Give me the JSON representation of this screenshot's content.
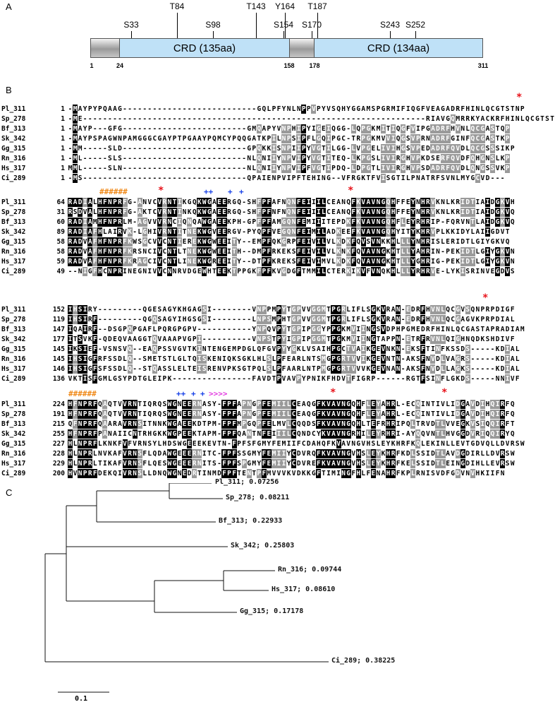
{
  "panels": {
    "a": "A",
    "b": "B",
    "c": "C"
  },
  "domain_diagram": {
    "crd1_label": "CRD (135aa)",
    "crd2_label": "CRD (134aa)",
    "coords": [
      "1",
      "24",
      "158",
      "178",
      "311"
    ],
    "sites": [
      "S33",
      "T84",
      "S98",
      "T143",
      "S154",
      "Y164",
      "S170",
      "T187",
      "S243",
      "S252"
    ]
  },
  "alignment": {
    "block1": {
      "rows": [
        {
          "name": "Pl_311",
          "pos": "1",
          "seq": "-MAYPYPQAAG---------------------------GQLPFYNLNPPVPYVSQHYGGAMSPGRMIFIQGFVEAGADRFHINLQCGTSTNP"
        },
        {
          "name": "Sp_278",
          "pos": "1",
          "seq": "-ME---------------------------------------------------------------------RIAVGQMRRKYACKRFHINLQCGTSTNP"
        },
        {
          "name": "Bf_313",
          "pos": "1",
          "seq": "-MAYP---GFG-------------------------GMQAPYVNPHIPYIGEIQGG-LQPGKMITIQGFVIPGADRFHVNLQCGASTQP"
        },
        {
          "name": "Sk_342",
          "pos": "1",
          "seq": "-MAYPSPAGWNPAMGGGCGAYPTPGAAYPQMCYPQQGATKPILNPSIPFLGQIPGC-TRPGKMVVIQGSVPRNADRFGINFQCGASTKP"
        },
        {
          "name": "Gg_315",
          "pos": "1",
          "seq": "-MM-----SLD-------------------------GPQKKISNPIIPYVGTILGG-LVPGELIVIHGSVPEDADRFQVDLQCGSSSIKP"
        },
        {
          "name": "Rn_316",
          "pos": "1",
          "seq": "-ML-----SLS-------------------------NLQNIIYNPVIPYVGTITEQ-LKPGSLIVIRGHVPKDSERFQVDFQHGNSLKP"
        },
        {
          "name": "Hs_317",
          "pos": "1",
          "seq": "MML-----SLN-------------------------NLQNIIYNPVIPFVGTIPDQ-LDPGTLIVIRGHVPSDADRFQVDLQNGSSVKP"
        },
        {
          "name": "Ci_289",
          "pos": "1",
          "seq": "-MS---------------------------------QPAIENPVIPFTEHING--VFRGKTFVISGTILPNATRFSVNLMYGCVD---"
        }
      ],
      "stars": [
        "*"
      ]
    },
    "block2": {
      "rows": [
        {
          "name": "Pl_311",
          "pos": "64",
          "seq": "RADIALHFNPRFG-ANVCVRNTIKGQKWGAEERGQ-SHFPFAFNQNFEIIILCEANQFKVAVNGQHFFEYNHRVKNLKRIDTIAIDGKVH"
        },
        {
          "name": "Sp_278",
          "pos": "31",
          "seq": "RSDVALHFNPRFG-AKTCVRNTINKQKWGAEERGQ-SHFPFNFNQNFEIIILCEANQFKVAVNGQHFFEYNHRVKNLKRIDTIAIDGKVQ"
        },
        {
          "name": "Bf_313",
          "pos": "60",
          "seq": "RADIAMHFNPRLM-AGVVVRNCIQNQAWGAEEKPH-GPFPFAMGQNFEMIIITEPDKFKVAVNGQHFLEYRHRIP-FQRVNTLAIDGKVQ"
        },
        {
          "name": "Sk_342",
          "pos": "89",
          "seq": "RADIAFHLAIRVK-LGHIVRNTITNEKWGVEERGV-PYQPFVEGQNFEIMILADKEEFKVAVNGQHYITYKHRVPLKKIDYLAIIGDVT"
        },
        {
          "name": "Gg_315",
          "pos": "58",
          "seq": "RADVAFHFNPRFKWSGCVVCNTIEREKWGWEEITY--EMPFQKGRPFEIVILVLKDKFQVSVNKKHLLLYNHRISLERIDTLGIYGKVQ"
        },
        {
          "name": "Rn_316",
          "pos": "58",
          "seq": "RADVAFHFNPRFKRSNCIVCNTLTNEKWGWEEITH--DMPFRKEKSFEIVILVLKNKFQVAVNGKHTLLYAHRIN-PEKIDTLGIYGKVN"
        },
        {
          "name": "Hs_317",
          "pos": "59",
          "seq": "RADVAFHFNPRFKRAGCIVCNTLINEKWGREEITY--DTPFKREKSFEIVIMVLKDKFQVAVNGKHTLLYGHRIG-PEKIDTLGIYGKVN"
        },
        {
          "name": "Ci_289",
          "pos": "49",
          "seq": "--NIGFHCNPRINEGNIVVCNNRVDGEWHTEEKTPPGKFPFKVGDGFTMMILCTERKIKVFVNQKHLLLYRHRVE-LYKISRINVEGDVS"
        }
      ],
      "annotations": [
        "######",
        "*",
        "++",
        "+",
        "+",
        "*"
      ]
    },
    "block3": {
      "rows": [
        {
          "name": "Pl_311",
          "pos": "152",
          "seq": "IHSIRY---------QGESAGYKHGAGSI--------VNPPMPYTGPVVGGMTPGRLIFLSGKVRAN-EDRFHVNLQCGVSQNPRPDIGF"
        },
        {
          "name": "Sp_278",
          "pos": "119",
          "seq": "IHSIRF---------QGQSAGYIHGSGSI--------LNPSMPHTGPVVGGMTPGRLIFLSGKVRAN-EDRFHVNLQCGAGVKPRPDIAL"
        },
        {
          "name": "Bf_313",
          "pos": "147",
          "seq": "IQAIRF--DSGPQPGAFLPQRGPGPV-----------YNPQVPYTGPIPGGYPPGKMVIINGSVDPHPGMEDRFHINLQCGASTAPRADIAM"
        },
        {
          "name": "Sk_342",
          "pos": "177",
          "seq": "ITSVKF-QDEQVAAGGTQVAAAPVGPI----------VNPSTPYIGPIPGGMTPGKMVIINGTAPPN-ETRFRVNLQIGHNQDKSHDIVF"
        },
        {
          "name": "Gg_315",
          "pos": "145",
          "seq": "IKSIEF-VSNSVQ--EAQPSSVGVTKINTENGEMPDGLQFGVPYYGKLVSAIHPGCTVAIKGEVNKN-EKSFTINFKSSDS-----KDIAL"
        },
        {
          "name": "Rn_316",
          "pos": "145",
          "seq": "IHSIGFRFSSDLQ--SMETSTLGLTQISKENIQKSGKLHLSLPFEARLNTSMGPGRTVVIKGEVNTN-AKSFNVDLVAGRS-----KDIAL"
        },
        {
          "name": "Hs_317",
          "pos": "146",
          "seq": "IHSIGFSFSSDLQ--STQASSLELTEISRENVPKSGTPQLSLPFAARLNTPMGPGRTVVVKGEVNAN-AKSFNVDLLAGKS-----KDIAL"
        },
        {
          "name": "Ci_289",
          "pos": "136",
          "seq": "VKTISFGMLGSYPDTGLEIPK----------------FAVDTPVAVPYPNIKFHDVTFIGRP------RGTFSINFLGKDS-----NNIVF"
        }
      ],
      "stars": [
        "*"
      ]
    },
    "block4": {
      "rows": [
        {
          "name": "Pl_311",
          "pos": "224",
          "seq": "HFNPRFQAQTVVRNTIQRQSWGNEERNASY-FPFAPNGPFEMIILCEAQGFKVAVNGQHFLEYAHRL-ECQINTIVLIDGAVDIHQIRFQ"
        },
        {
          "name": "Sp_278",
          "pos": "191",
          "seq": "HFNPRFQAQTVVRNTIQRQSWGNEERNASY-FPFAPNGPFEMIILCEAQGFKVAVNGQHFLEYAHRL-ECQINTIVLIDGAVDIHQIRFQ"
        },
        {
          "name": "Bf_313",
          "pos": "215",
          "seq": "QFNPRFQAARAVRNSITNNKWGAEEKDTPM-FPFMPGQPFELMVLCQQDSFKVAVNGQHLTEFRHRIPQLTRVDTLVVEGKVSIQQIRFT"
        },
        {
          "name": "Sk_342",
          "pos": "255",
          "seq": "HFNPRFPANAIICNTRHGKKWGPEEKTAPM-FPFQANTNFEIIILCQNDCYKVAVNGRHILEYRHRI-AYQQVNTLHVGGDVRIQQIRYQ"
        },
        {
          "name": "Gg_315",
          "pos": "227",
          "seq": "HLNPRFLKNKFVFVRNSYLHDSWGEEEKEVTN-FPFSFGMYFEMIIFCDAHQFKVAVNGVHSLEYKHRFKQLEKINLLEVTGDVQLLDVRSW"
        },
        {
          "name": "Rn_316",
          "pos": "228",
          "seq": "HLNPRLNVKAFVRNSFLQDAWGEEERNITC-FPFSSGMYFEMIIYCDVRQFKVAVNGVHSLEYKHRFKDLSSIDTLAVDGDIRLLDVRSW"
        },
        {
          "name": "Hs_317",
          "pos": "229",
          "seq": "HLNPRLTIKAFVRNSFLQESWGEEERNITS-FPFSPGMYFEMIIYCDVREFKVAVNGVHSLEYKHRFKELSSIDTLEINGDIHLLEVRSW"
        },
        {
          "name": "Ci_289",
          "pos": "200",
          "seq": "HVNPRFDEKQIVRNSLLDNQWGNEDRTINMDFPFTENTPFMVVVKVDKKGFTIMINGFHLFENAHRFKPLRNISVDFGDVNVHKIIFN"
        }
      ],
      "annotations": [
        "######",
        "++",
        "+",
        "+",
        ">>>>",
        "*",
        "*"
      ]
    }
  },
  "tree": {
    "leaves": [
      {
        "label": "Pl_311; 0.07256"
      },
      {
        "label": "Sp_278; 0.08211"
      },
      {
        "label": "Bf_313; 0.22933"
      },
      {
        "label": "Sk_342; 0.25803"
      },
      {
        "label": "Rn_316; 0.09744"
      },
      {
        "label": "Hs_317; 0.08610"
      },
      {
        "label": "Gg_315; 0.17178"
      },
      {
        "label": "Ci_289; 0.38225"
      }
    ],
    "scale_label": "0.1"
  },
  "colors": {
    "crd": "#bfe1f7",
    "star": "#e8141c",
    "hash": "#f08a1a",
    "plus": "#1640e8",
    "arrow": "#e23be0"
  }
}
